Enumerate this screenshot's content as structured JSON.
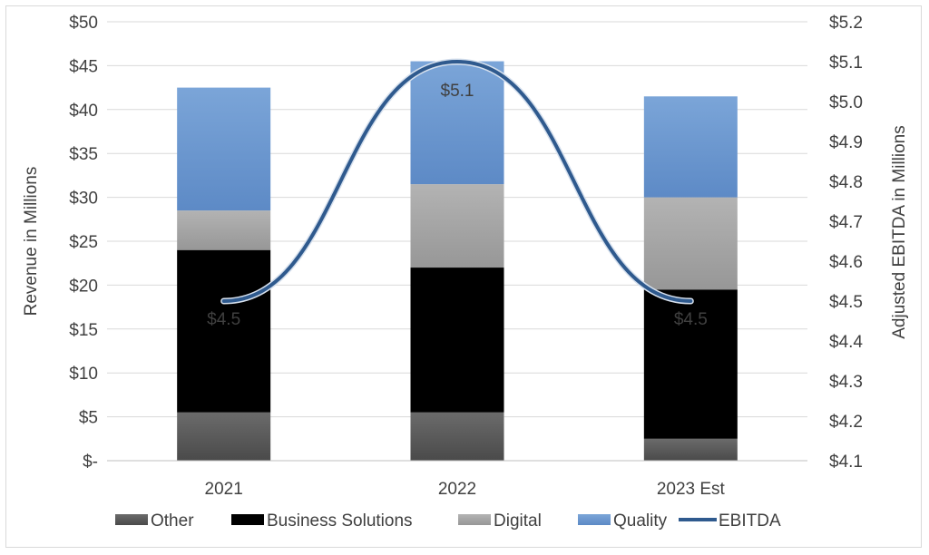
{
  "chart_data": {
    "type": "bar",
    "stacked": true,
    "categories": [
      "2021",
      "2022",
      "2023 Est"
    ],
    "series": [
      {
        "name": "Other",
        "axis": "left",
        "color": "#595959",
        "values": [
          5.5,
          5.5,
          2.5
        ]
      },
      {
        "name": "Business Solutions",
        "axis": "left",
        "color": "#4a64b6",
        "values": [
          18.5,
          16.5,
          17.0
        ]
      },
      {
        "name": "Digital",
        "axis": "left",
        "color": "#a8a8a8",
        "values": [
          4.5,
          9.5,
          10.5
        ]
      },
      {
        "name": "Quality",
        "axis": "left",
        "color": "#6a98cf",
        "values": [
          14.0,
          14.0,
          11.5
        ]
      },
      {
        "name": "EBITDA",
        "type": "line",
        "axis": "right",
        "color": "#2f5a8e",
        "values": [
          4.5,
          5.1,
          4.5
        ],
        "labels": [
          "$4.5",
          "$5.1",
          "$4.5"
        ]
      }
    ],
    "ylabel": "Revenue in Millions",
    "y2label": "Adjusted EBITDA in Millions",
    "ylim": [
      0,
      50
    ],
    "y2lim": [
      4.1,
      5.2
    ],
    "yticks": [
      0,
      5,
      10,
      15,
      20,
      25,
      30,
      35,
      40,
      45,
      50
    ],
    "yticklabels": [
      "$-",
      "$5",
      "$10",
      "$15",
      "$20",
      "$25",
      "$30",
      "$35",
      "$40",
      "$45",
      "$50"
    ],
    "y2ticks": [
      4.1,
      4.2,
      4.3,
      4.4,
      4.5,
      4.6,
      4.7,
      4.8,
      4.9,
      5.0,
      5.1,
      5.2
    ],
    "y2ticklabels": [
      "$4.1",
      "$4.2",
      "$4.3",
      "$4.4",
      "$4.5",
      "$4.6",
      "$4.7",
      "$4.8",
      "$4.9",
      "$5.0",
      "$5.1",
      "$5.2"
    ],
    "grid": true,
    "legend_position": "bottom"
  }
}
